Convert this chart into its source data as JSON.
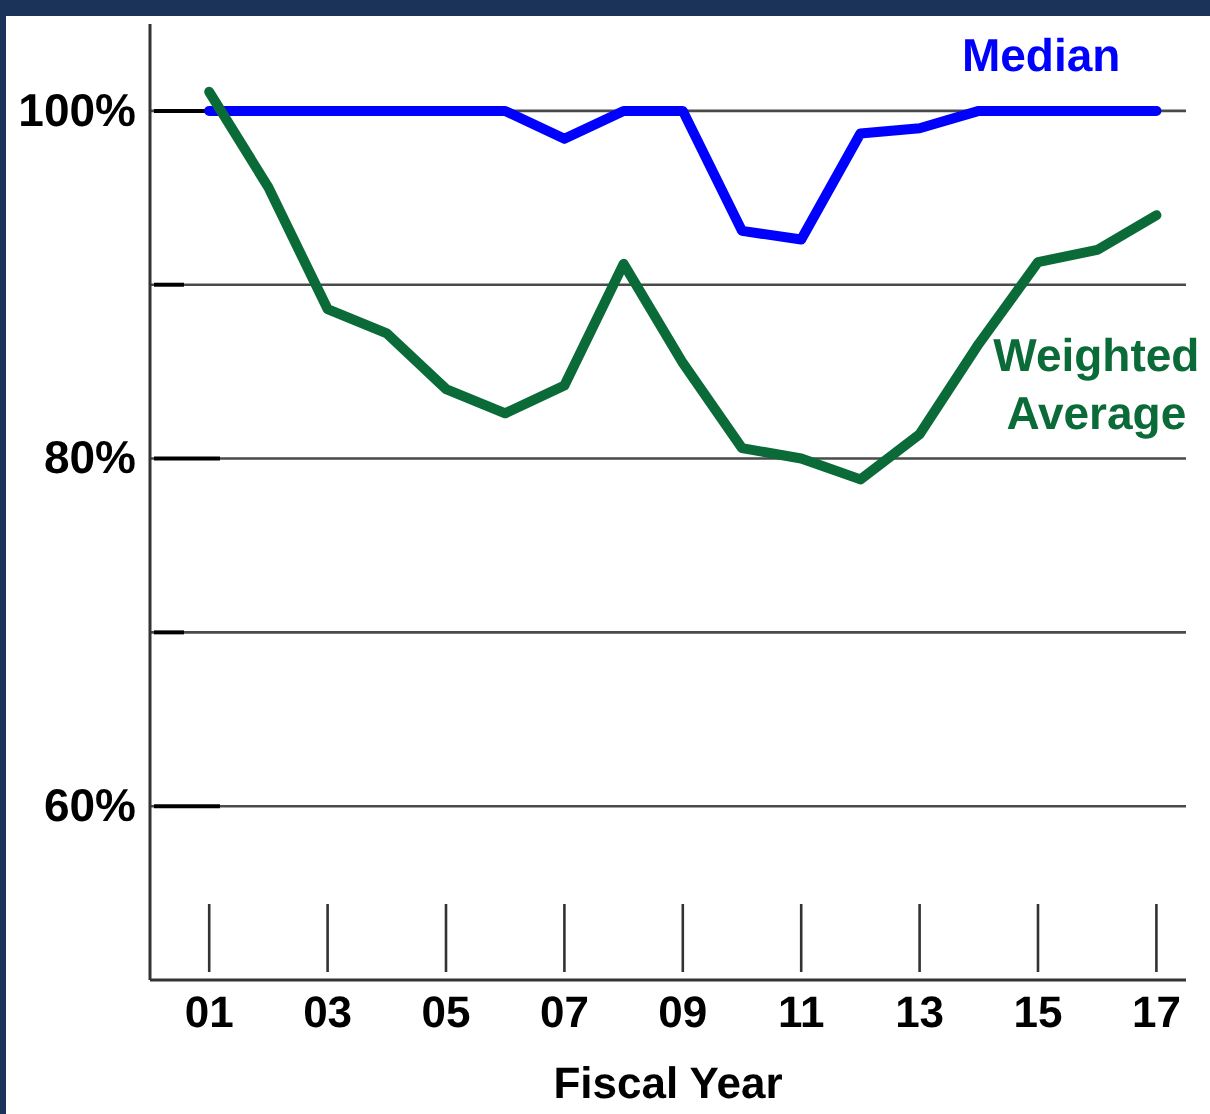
{
  "chart_data": {
    "type": "line",
    "xlabel": "Fiscal Year",
    "x": [
      1,
      2,
      3,
      4,
      5,
      6,
      7,
      8,
      9,
      10,
      11,
      12,
      13,
      14,
      15,
      16,
      17
    ],
    "xlim": [
      0,
      17.5
    ],
    "xticks": [
      {
        "value": 1,
        "label": "01"
      },
      {
        "value": 3,
        "label": "03"
      },
      {
        "value": 5,
        "label": "05"
      },
      {
        "value": 7,
        "label": "07"
      },
      {
        "value": 9,
        "label": "09"
      },
      {
        "value": 11,
        "label": "11"
      },
      {
        "value": 13,
        "label": "13"
      },
      {
        "value": 15,
        "label": "15"
      },
      {
        "value": 17,
        "label": "17"
      }
    ],
    "ylim": [
      50,
      105
    ],
    "yticks": [
      {
        "value": 100,
        "label": "100%"
      },
      {
        "value": 90,
        "label": null
      },
      {
        "value": 80,
        "label": "80%"
      },
      {
        "value": 70,
        "label": null
      },
      {
        "value": 60,
        "label": "60%"
      }
    ],
    "grid": "y",
    "series": [
      {
        "name": "Median",
        "color": "#0000ff",
        "values": [
          100,
          100,
          100,
          100,
          100,
          100,
          98.4,
          100,
          100,
          93.1,
          92.6,
          98.7,
          99.0,
          100,
          100,
          100,
          100
        ]
      },
      {
        "name": "Weighted Average",
        "color": "#0a6b38",
        "values": [
          101.1,
          95.6,
          88.6,
          87.2,
          84.0,
          82.6,
          84.2,
          91.2,
          85.5,
          80.6,
          80.0,
          78.8,
          81.4,
          86.6,
          91.3,
          92.0,
          94.0
        ]
      }
    ]
  }
}
